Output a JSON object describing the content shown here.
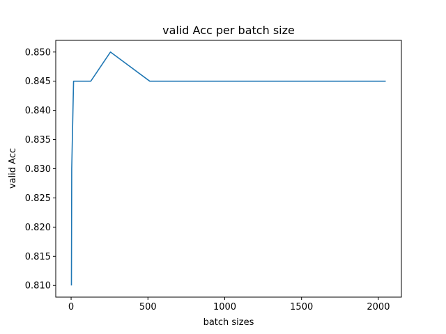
{
  "chart_data": {
    "type": "line",
    "title": "valid Acc per batch size",
    "xlabel": "batch sizes",
    "ylabel": "valid Acc",
    "xlim": [
      -100,
      2150
    ],
    "ylim": [
      0.808,
      0.852
    ],
    "grid": false,
    "x_ticks": [
      0,
      500,
      1000,
      1500,
      2000
    ],
    "x_tick_labels": [
      "0",
      "500",
      "1000",
      "1500",
      "2000"
    ],
    "y_ticks": [
      0.81,
      0.815,
      0.82,
      0.825,
      0.83,
      0.835,
      0.84,
      0.845,
      0.85
    ],
    "y_tick_labels": [
      "0.810",
      "0.815",
      "0.820",
      "0.825",
      "0.830",
      "0.835",
      "0.840",
      "0.845",
      "0.850"
    ],
    "series": [
      {
        "color": "#1f77b4",
        "x": [
          2,
          4,
          8,
          16,
          32,
          64,
          128,
          256,
          512,
          1024,
          2048
        ],
        "y": [
          0.81,
          0.83,
          0.835,
          0.845,
          0.845,
          0.845,
          0.845,
          0.85,
          0.845,
          0.845,
          0.845
        ]
      }
    ]
  }
}
